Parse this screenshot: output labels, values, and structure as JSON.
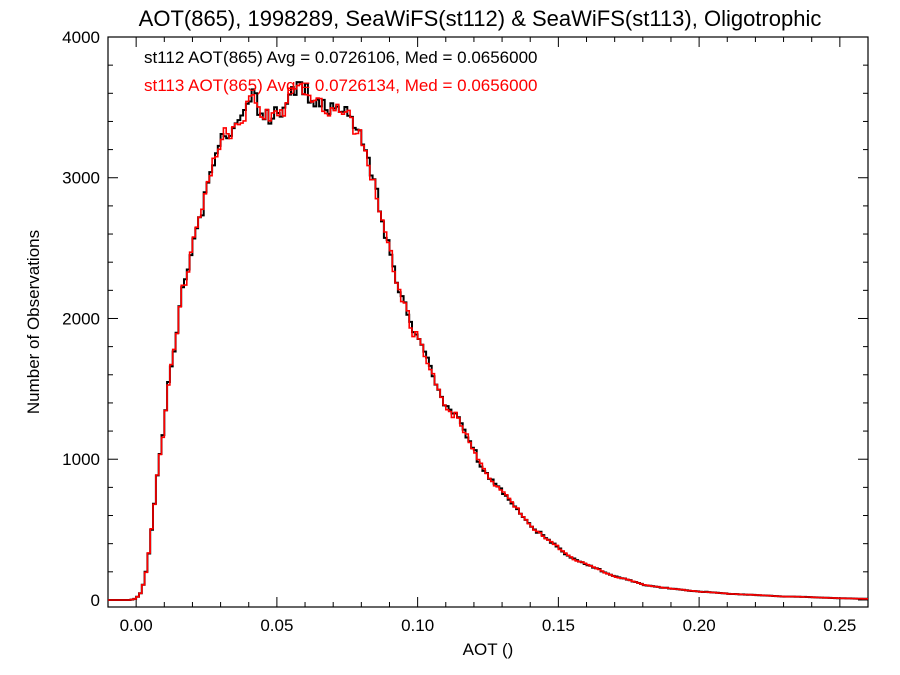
{
  "chart_data": {
    "type": "line",
    "step": true,
    "title": "AOT(865), 1998289, SeaWiFS(st112) & SeaWiFS(st113), Oligotrophic",
    "xlabel": "AOT ()",
    "ylabel": "Number of Observations",
    "xlim": [
      -0.01,
      0.26
    ],
    "ylim": [
      -50,
      4000
    ],
    "x_ticks": [
      0.0,
      0.05,
      0.1,
      0.15,
      0.2,
      0.25
    ],
    "x_tick_labels": [
      "0.00",
      "0.05",
      "0.10",
      "0.15",
      "0.20",
      "0.25"
    ],
    "y_ticks": [
      0,
      1000,
      2000,
      3000,
      4000
    ],
    "y_tick_labels": [
      "0",
      "1000",
      "2000",
      "3000",
      "4000"
    ],
    "bin_width": 0.001,
    "annotations": [
      {
        "text": "st112 AOT(865) Avg = 0.0726106, Med = 0.0656000",
        "color": "#000000"
      },
      {
        "text": "st113 AOT(865) Avg = 0.0726134, Med = 0.0656000",
        "color": "#ff0000"
      }
    ],
    "series": [
      {
        "color": "#000000",
        "keypoints": [
          [
            -0.01,
            0
          ],
          [
            -0.002,
            0
          ],
          [
            0.0,
            10
          ],
          [
            0.002,
            60
          ],
          [
            0.004,
            250
          ],
          [
            0.006,
            600
          ],
          [
            0.008,
            1000
          ],
          [
            0.01,
            1250
          ],
          [
            0.012,
            1600
          ],
          [
            0.014,
            1800
          ],
          [
            0.016,
            2150
          ],
          [
            0.018,
            2350
          ],
          [
            0.02,
            2550
          ],
          [
            0.022,
            2700
          ],
          [
            0.024,
            2850
          ],
          [
            0.026,
            2950
          ],
          [
            0.028,
            3100
          ],
          [
            0.03,
            3200
          ],
          [
            0.032,
            3300
          ],
          [
            0.034,
            3350
          ],
          [
            0.036,
            3450
          ],
          [
            0.038,
            3500
          ],
          [
            0.04,
            3480
          ],
          [
            0.042,
            3550
          ],
          [
            0.044,
            3400
          ],
          [
            0.046,
            3420
          ],
          [
            0.048,
            3450
          ],
          [
            0.05,
            3550
          ],
          [
            0.052,
            3500
          ],
          [
            0.054,
            3600
          ],
          [
            0.056,
            3520
          ],
          [
            0.058,
            3600
          ],
          [
            0.06,
            3550
          ],
          [
            0.062,
            3650
          ],
          [
            0.064,
            3600
          ],
          [
            0.066,
            3580
          ],
          [
            0.068,
            3500
          ],
          [
            0.07,
            3450
          ],
          [
            0.072,
            3420
          ],
          [
            0.074,
            3400
          ],
          [
            0.076,
            3450
          ],
          [
            0.078,
            3380
          ],
          [
            0.08,
            3350
          ],
          [
            0.082,
            3200
          ],
          [
            0.084,
            3000
          ],
          [
            0.086,
            2800
          ],
          [
            0.088,
            2600
          ],
          [
            0.09,
            2450
          ],
          [
            0.092,
            2350
          ],
          [
            0.094,
            2200
          ],
          [
            0.096,
            2100
          ],
          [
            0.098,
            1950
          ],
          [
            0.1,
            1850
          ],
          [
            0.105,
            1600
          ],
          [
            0.11,
            1400
          ],
          [
            0.115,
            1250
          ],
          [
            0.12,
            1050
          ],
          [
            0.125,
            900
          ],
          [
            0.13,
            760
          ],
          [
            0.135,
            650
          ],
          [
            0.14,
            540
          ],
          [
            0.145,
            440
          ],
          [
            0.15,
            370
          ],
          [
            0.155,
            300
          ],
          [
            0.16,
            250
          ],
          [
            0.165,
            210
          ],
          [
            0.17,
            170
          ],
          [
            0.175,
            140
          ],
          [
            0.18,
            110
          ],
          [
            0.185,
            95
          ],
          [
            0.19,
            80
          ],
          [
            0.195,
            70
          ],
          [
            0.2,
            60
          ],
          [
            0.21,
            45
          ],
          [
            0.22,
            35
          ],
          [
            0.23,
            25
          ],
          [
            0.24,
            20
          ],
          [
            0.25,
            12
          ],
          [
            0.26,
            8
          ]
        ]
      },
      {
        "color": "#ff0000",
        "keypoints": [
          [
            -0.01,
            0
          ],
          [
            -0.002,
            0
          ],
          [
            0.0,
            10
          ],
          [
            0.002,
            60
          ],
          [
            0.004,
            250
          ],
          [
            0.006,
            600
          ],
          [
            0.008,
            1000
          ],
          [
            0.01,
            1250
          ],
          [
            0.012,
            1600
          ],
          [
            0.014,
            1800
          ],
          [
            0.016,
            2150
          ],
          [
            0.018,
            2350
          ],
          [
            0.02,
            2550
          ],
          [
            0.022,
            2700
          ],
          [
            0.024,
            2850
          ],
          [
            0.026,
            2950
          ],
          [
            0.028,
            3100
          ],
          [
            0.03,
            3200
          ],
          [
            0.032,
            3300
          ],
          [
            0.034,
            3350
          ],
          [
            0.036,
            3450
          ],
          [
            0.038,
            3500
          ],
          [
            0.04,
            3480
          ],
          [
            0.042,
            3550
          ],
          [
            0.044,
            3400
          ],
          [
            0.046,
            3420
          ],
          [
            0.048,
            3450
          ],
          [
            0.05,
            3550
          ],
          [
            0.052,
            3500
          ],
          [
            0.054,
            3600
          ],
          [
            0.056,
            3520
          ],
          [
            0.058,
            3600
          ],
          [
            0.06,
            3550
          ],
          [
            0.062,
            3650
          ],
          [
            0.064,
            3600
          ],
          [
            0.066,
            3580
          ],
          [
            0.068,
            3500
          ],
          [
            0.07,
            3450
          ],
          [
            0.072,
            3420
          ],
          [
            0.074,
            3400
          ],
          [
            0.076,
            3450
          ],
          [
            0.078,
            3380
          ],
          [
            0.08,
            3350
          ],
          [
            0.082,
            3200
          ],
          [
            0.084,
            3000
          ],
          [
            0.086,
            2800
          ],
          [
            0.088,
            2600
          ],
          [
            0.09,
            2450
          ],
          [
            0.092,
            2350
          ],
          [
            0.094,
            2200
          ],
          [
            0.096,
            2100
          ],
          [
            0.098,
            1950
          ],
          [
            0.1,
            1850
          ],
          [
            0.105,
            1600
          ],
          [
            0.11,
            1400
          ],
          [
            0.115,
            1250
          ],
          [
            0.12,
            1050
          ],
          [
            0.125,
            900
          ],
          [
            0.13,
            760
          ],
          [
            0.135,
            650
          ],
          [
            0.14,
            540
          ],
          [
            0.145,
            440
          ],
          [
            0.15,
            370
          ],
          [
            0.155,
            300
          ],
          [
            0.16,
            250
          ],
          [
            0.165,
            210
          ],
          [
            0.17,
            170
          ],
          [
            0.175,
            140
          ],
          [
            0.18,
            110
          ],
          [
            0.185,
            95
          ],
          [
            0.19,
            80
          ],
          [
            0.195,
            70
          ],
          [
            0.2,
            60
          ],
          [
            0.21,
            45
          ],
          [
            0.22,
            35
          ],
          [
            0.23,
            25
          ],
          [
            0.24,
            20
          ],
          [
            0.25,
            12
          ],
          [
            0.26,
            8
          ]
        ]
      }
    ]
  }
}
